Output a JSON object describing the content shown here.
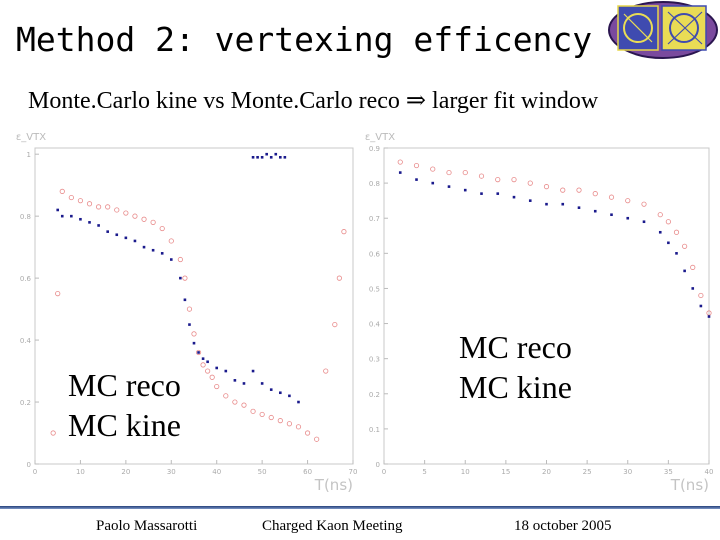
{
  "slide": {
    "title": "Method 2: vertexing efficency",
    "subtitle": "Monte.Carlo kine vs Monte.Carlo reco ⇒ larger fit window"
  },
  "legend_left": [
    "MC reco",
    "MC kine"
  ],
  "legend_right": [
    "MC reco",
    "MC kine"
  ],
  "colors": {
    "reco": "#e88a8a",
    "kine": "#1a1a8c",
    "footer_rule": "#3b5998"
  },
  "footer": {
    "author": "Paolo Massarotti",
    "meeting": "Charged Kaon Meeting",
    "date": "18 october 2005"
  },
  "chart_data": [
    {
      "type": "scatter",
      "ylabel": "ε_VTX",
      "xlabel": "T(ns)",
      "xlim": [
        0,
        70
      ],
      "ylim": [
        0,
        1.02
      ],
      "xticks": [
        0,
        10,
        20,
        30,
        40,
        50,
        60,
        70
      ],
      "yticks": [
        0,
        0.2,
        0.4,
        0.6,
        0.8,
        1
      ],
      "series": [
        {
          "name": "MC reco",
          "color": "reco",
          "x": [
            4,
            5,
            6,
            8,
            10,
            12,
            14,
            16,
            18,
            20,
            22,
            24,
            26,
            28,
            30,
            32,
            33,
            34,
            35,
            36,
            37,
            38,
            39,
            40,
            42,
            44,
            46,
            48,
            50,
            52,
            54,
            56,
            58,
            60,
            62,
            64,
            66,
            67,
            68
          ],
          "y": [
            0.1,
            0.55,
            0.88,
            0.86,
            0.85,
            0.84,
            0.83,
            0.83,
            0.82,
            0.81,
            0.8,
            0.79,
            0.78,
            0.76,
            0.72,
            0.66,
            0.6,
            0.5,
            0.42,
            0.36,
            0.32,
            0.3,
            0.28,
            0.25,
            0.22,
            0.2,
            0.19,
            0.17,
            0.16,
            0.15,
            0.14,
            0.13,
            0.12,
            0.1,
            0.08,
            0.3,
            0.45,
            0.6,
            0.75
          ]
        },
        {
          "name": "MC kine",
          "color": "kine",
          "x": [
            5,
            6,
            8,
            10,
            12,
            14,
            16,
            18,
            20,
            22,
            24,
            26,
            28,
            30,
            32,
            33,
            34,
            35,
            36,
            37,
            38,
            40,
            42,
            44,
            46,
            48,
            50,
            52,
            54,
            56,
            58
          ],
          "y": [
            0.82,
            0.8,
            0.8,
            0.79,
            0.78,
            0.77,
            0.75,
            0.74,
            0.73,
            0.72,
            0.7,
            0.69,
            0.68,
            0.66,
            0.6,
            0.53,
            0.45,
            0.39,
            0.36,
            0.34,
            0.33,
            0.31,
            0.3,
            0.27,
            0.26,
            0.3,
            0.26,
            0.24,
            0.23,
            0.22,
            0.2
          ]
        },
        {
          "name": "MC kine outliers",
          "color": "kine",
          "x": [
            48,
            49,
            50,
            51,
            52,
            53,
            54,
            55
          ],
          "y": [
            0.99,
            0.99,
            0.99,
            1,
            0.99,
            1,
            0.99,
            0.99
          ]
        }
      ]
    },
    {
      "type": "scatter",
      "ylabel": "ε_VTX",
      "xlabel": "T(ns)",
      "xlim": [
        0,
        40
      ],
      "ylim": [
        0,
        0.9
      ],
      "xticks": [
        0,
        5,
        10,
        15,
        20,
        25,
        30,
        35,
        40
      ],
      "yticks": [
        0,
        0.1,
        0.2,
        0.3,
        0.4,
        0.5,
        0.6,
        0.7,
        0.8,
        0.9
      ],
      "series": [
        {
          "name": "MC reco",
          "color": "reco",
          "x": [
            2,
            4,
            6,
            8,
            10,
            12,
            14,
            16,
            18,
            20,
            22,
            24,
            26,
            28,
            30,
            32,
            34,
            35,
            36,
            37,
            38,
            39,
            40
          ],
          "y": [
            0.86,
            0.85,
            0.84,
            0.83,
            0.83,
            0.82,
            0.81,
            0.81,
            0.8,
            0.79,
            0.78,
            0.78,
            0.77,
            0.76,
            0.75,
            0.74,
            0.71,
            0.69,
            0.66,
            0.62,
            0.56,
            0.48,
            0.43
          ]
        },
        {
          "name": "MC kine",
          "color": "kine",
          "x": [
            2,
            4,
            6,
            8,
            10,
            12,
            14,
            16,
            18,
            20,
            22,
            24,
            26,
            28,
            30,
            32,
            34,
            35,
            36,
            37,
            38,
            39,
            40
          ],
          "y": [
            0.83,
            0.81,
            0.8,
            0.79,
            0.78,
            0.77,
            0.77,
            0.76,
            0.75,
            0.74,
            0.74,
            0.73,
            0.72,
            0.71,
            0.7,
            0.69,
            0.66,
            0.63,
            0.6,
            0.55,
            0.5,
            0.45,
            0.42
          ]
        }
      ]
    }
  ]
}
